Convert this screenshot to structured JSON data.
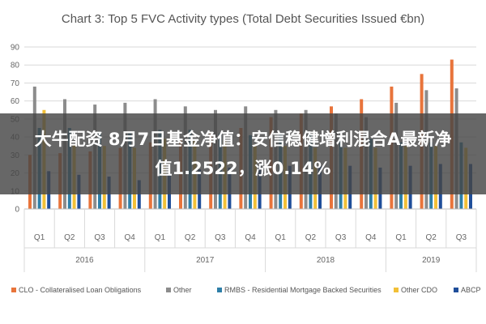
{
  "chart_data": {
    "type": "bar",
    "title": "Chart 3: Top 5 FVC Activity types (Total Debt Securities Issued €bn)",
    "ylim": [
      0,
      90
    ],
    "yticks": [
      0,
      10,
      20,
      30,
      40,
      50,
      60,
      70,
      80,
      90
    ],
    "grid": true,
    "legend_position": "bottom",
    "categories": [
      "Q1",
      "Q2",
      "Q3",
      "Q4",
      "Q1",
      "Q2",
      "Q3",
      "Q4",
      "Q1",
      "Q2",
      "Q3",
      "Q4",
      "Q1",
      "Q2",
      "Q3"
    ],
    "year_groups": [
      {
        "label": "2016",
        "count": 4
      },
      {
        "label": "2017",
        "count": 4
      },
      {
        "label": "2018",
        "count": 4
      },
      {
        "label": "2019",
        "count": 3
      }
    ],
    "series": [
      {
        "name": "CLO - Collateralised Loan Obligations",
        "color": "#E8743B",
        "values": [
          30,
          31,
          32,
          34,
          37,
          39,
          43,
          45,
          51,
          53,
          57,
          61,
          68,
          75,
          83
        ]
      },
      {
        "name": "Other",
        "color": "#8C8C8C",
        "values": [
          68,
          61,
          58,
          59,
          61,
          57,
          55,
          57,
          55,
          55,
          53,
          51,
          59,
          66,
          67
        ]
      },
      {
        "name": "RMBS - Residential Mortgage Backed Securities",
        "color": "#2E7FA8",
        "values": [
          45,
          45,
          43,
          42,
          44,
          44,
          42,
          41,
          42,
          41,
          40,
          39,
          37,
          37,
          37
        ]
      },
      {
        "name": "Other CDO",
        "color": "#F2C037",
        "values": [
          55,
          36,
          35,
          34,
          39,
          38,
          38,
          36,
          35,
          34,
          34,
          34,
          35,
          35,
          34
        ]
      },
      {
        "name": "ABCP",
        "color": "#1F4E9A",
        "values": [
          21,
          19,
          18,
          16,
          19,
          22,
          23,
          24,
          24,
          24,
          24,
          23,
          24,
          25,
          25
        ]
      }
    ]
  },
  "overlay": {
    "line1": "大牛配资 8月7日基金净值：安信稳健增利混合A最新净",
    "line2": "值1.2522，涨0.14%"
  }
}
